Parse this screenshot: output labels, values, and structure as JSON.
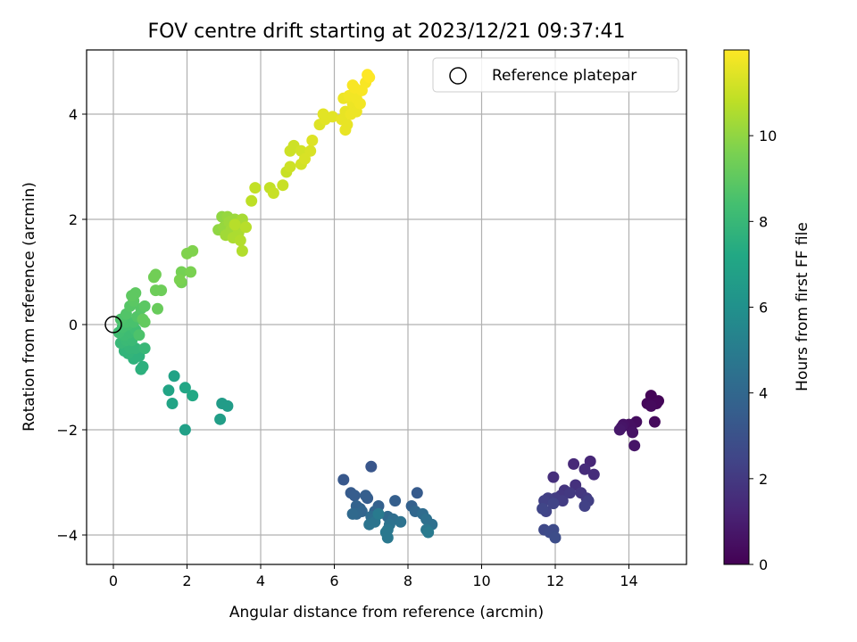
{
  "chart_data": {
    "type": "scatter",
    "title": "FOV centre drift starting at 2023/12/21 09:37:41",
    "xlabel": "Angular distance from reference (arcmin)",
    "ylabel": "Rotation from reference (arcmin)",
    "xlim": [
      -0.7,
      15.5
    ],
    "ylim": [
      -4.55,
      5.2
    ],
    "xticks": [
      0,
      2,
      4,
      6,
      8,
      10,
      12,
      14
    ],
    "yticks": [
      -4,
      -2,
      0,
      2,
      4
    ],
    "grid": true,
    "legend": {
      "placement": "top-right",
      "entries": [
        "Reference platepar"
      ]
    },
    "reference_point": {
      "x": 0,
      "y": 0
    },
    "colorbar": {
      "label": "Hours from first FF file",
      "range": [
        0,
        12
      ],
      "ticks": [
        0,
        2,
        4,
        6,
        8,
        10
      ],
      "colormap": "viridis"
    },
    "series": [
      {
        "points": [
          [
            14.6,
            -1.35,
            0.1
          ],
          [
            14.8,
            -1.45,
            0.1
          ],
          [
            14.5,
            -1.5,
            0.2
          ],
          [
            14.75,
            -1.5,
            0.2
          ],
          [
            14.6,
            -1.55,
            0.3
          ],
          [
            14.7,
            -1.85,
            0.3
          ],
          [
            14.2,
            -1.85,
            0.4
          ],
          [
            14.0,
            -1.9,
            0.5
          ],
          [
            13.85,
            -1.9,
            0.6
          ],
          [
            13.8,
            -1.95,
            0.7
          ],
          [
            13.75,
            -2.0,
            0.8
          ],
          [
            14.05,
            -1.95,
            0.5
          ],
          [
            14.1,
            -2.05,
            0.6
          ],
          [
            14.15,
            -2.3,
            0.7
          ],
          [
            12.95,
            -2.6,
            1.3
          ],
          [
            12.5,
            -2.65,
            1.4
          ],
          [
            12.8,
            -2.75,
            1.5
          ],
          [
            13.05,
            -2.85,
            1.5
          ],
          [
            11.95,
            -2.9,
            1.6
          ],
          [
            12.55,
            -3.05,
            1.7
          ],
          [
            12.25,
            -3.15,
            1.8
          ],
          [
            12.7,
            -3.2,
            1.9
          ],
          [
            12.15,
            -3.25,
            1.9
          ],
          [
            12.85,
            -3.3,
            2.0
          ],
          [
            12.4,
            -3.2,
            2.0
          ],
          [
            12.0,
            -3.3,
            2.1
          ],
          [
            12.2,
            -3.35,
            2.1
          ],
          [
            11.8,
            -3.3,
            2.2
          ],
          [
            11.7,
            -3.35,
            2.3
          ],
          [
            12.9,
            -3.35,
            2.2
          ],
          [
            12.8,
            -3.45,
            2.3
          ],
          [
            11.75,
            -3.55,
            2.4
          ],
          [
            11.65,
            -3.5,
            2.5
          ],
          [
            11.95,
            -3.4,
            2.4
          ],
          [
            11.7,
            -3.9,
            2.6
          ],
          [
            11.95,
            -3.9,
            2.7
          ],
          [
            12.0,
            -4.05,
            2.8
          ],
          [
            11.85,
            -3.95,
            2.7
          ],
          [
            7.0,
            -2.7,
            3.2
          ],
          [
            6.25,
            -2.95,
            3.3
          ],
          [
            6.45,
            -3.2,
            3.4
          ],
          [
            8.25,
            -3.2,
            3.4
          ],
          [
            6.55,
            -3.25,
            3.5
          ],
          [
            6.9,
            -3.3,
            3.5
          ],
          [
            6.85,
            -3.25,
            3.6
          ],
          [
            7.65,
            -3.35,
            3.6
          ],
          [
            8.1,
            -3.45,
            3.7
          ],
          [
            7.2,
            -3.45,
            3.7
          ],
          [
            6.6,
            -3.45,
            3.8
          ],
          [
            6.7,
            -3.5,
            3.8
          ],
          [
            6.75,
            -3.55,
            3.9
          ],
          [
            7.1,
            -3.55,
            3.9
          ],
          [
            8.2,
            -3.55,
            4.0
          ],
          [
            6.6,
            -3.6,
            4.0
          ],
          [
            6.5,
            -3.6,
            4.1
          ],
          [
            7.45,
            -3.65,
            4.1
          ],
          [
            8.4,
            -3.6,
            4.2
          ],
          [
            7.0,
            -3.65,
            4.2
          ],
          [
            7.05,
            -3.7,
            4.3
          ],
          [
            7.6,
            -3.7,
            4.3
          ],
          [
            8.5,
            -3.7,
            4.4
          ],
          [
            8.65,
            -3.8,
            4.4
          ],
          [
            7.8,
            -3.75,
            4.5
          ],
          [
            7.5,
            -3.8,
            4.5
          ],
          [
            6.95,
            -3.8,
            4.6
          ],
          [
            7.1,
            -3.75,
            4.6
          ],
          [
            7.45,
            -3.9,
            4.7
          ],
          [
            8.5,
            -3.9,
            4.7
          ],
          [
            7.4,
            -3.95,
            4.8
          ],
          [
            7.45,
            -4.05,
            4.8
          ],
          [
            8.55,
            -3.95,
            4.9
          ],
          [
            7.2,
            -3.6,
            4.9
          ],
          [
            2.95,
            -1.5,
            6.6
          ],
          [
            3.1,
            -1.55,
            6.6
          ],
          [
            2.9,
            -1.8,
            6.7
          ],
          [
            1.95,
            -2.0,
            6.8
          ],
          [
            1.65,
            -0.98,
            6.9
          ],
          [
            1.5,
            -1.25,
            7.0
          ],
          [
            1.6,
            -1.5,
            7.0
          ],
          [
            1.95,
            -1.2,
            7.1
          ],
          [
            2.15,
            -1.35,
            7.2
          ],
          [
            0.75,
            -0.85,
            7.6
          ],
          [
            0.8,
            -0.8,
            7.6
          ],
          [
            0.55,
            -0.65,
            7.7
          ],
          [
            0.7,
            -0.6,
            7.7
          ],
          [
            0.4,
            -0.55,
            7.8
          ],
          [
            0.3,
            -0.5,
            7.8
          ],
          [
            0.45,
            -0.45,
            7.9
          ],
          [
            0.6,
            -0.45,
            7.9
          ],
          [
            0.85,
            -0.45,
            8.0
          ],
          [
            0.2,
            -0.35,
            8.0
          ],
          [
            0.35,
            -0.3,
            8.1
          ],
          [
            0.5,
            -0.3,
            8.1
          ],
          [
            0.3,
            -0.2,
            8.2
          ],
          [
            0.45,
            -0.15,
            8.2
          ],
          [
            0.15,
            -0.15,
            8.3
          ],
          [
            0.6,
            -0.1,
            8.3
          ],
          [
            0.25,
            -0.05,
            8.4
          ],
          [
            0.4,
            0.0,
            8.4
          ],
          [
            0.35,
            0.05,
            8.5
          ],
          [
            0.55,
            0.05,
            8.5
          ],
          [
            0.7,
            -0.2,
            8.6
          ],
          [
            0.2,
            0.1,
            8.6
          ],
          [
            0.65,
            0.15,
            8.7
          ],
          [
            0.35,
            0.2,
            8.7
          ],
          [
            0.45,
            0.35,
            8.8
          ],
          [
            0.75,
            0.3,
            8.8
          ],
          [
            0.85,
            0.35,
            8.9
          ],
          [
            0.55,
            0.45,
            8.9
          ],
          [
            0.6,
            0.6,
            9.0
          ],
          [
            0.5,
            0.55,
            9.0
          ],
          [
            0.8,
            0.1,
            9.1
          ],
          [
            0.85,
            0.05,
            9.1
          ],
          [
            1.2,
            0.3,
            9.2
          ],
          [
            1.15,
            0.65,
            9.3
          ],
          [
            1.3,
            0.65,
            9.3
          ],
          [
            1.1,
            0.9,
            9.4
          ],
          [
            1.15,
            0.95,
            9.4
          ],
          [
            1.85,
            0.8,
            9.5
          ],
          [
            1.85,
            1.0,
            9.5
          ],
          [
            2.1,
            1.0,
            9.6
          ],
          [
            1.8,
            0.85,
            9.6
          ],
          [
            2.0,
            1.35,
            9.7
          ],
          [
            2.15,
            1.4,
            9.7
          ],
          [
            2.85,
            1.8,
            10.0
          ],
          [
            2.95,
            2.05,
            10.0
          ],
          [
            3.1,
            2.05,
            10.1
          ],
          [
            3.0,
            1.85,
            10.1
          ],
          [
            3.15,
            1.95,
            10.2
          ],
          [
            3.3,
            2.0,
            10.2
          ],
          [
            3.05,
            1.7,
            10.3
          ],
          [
            3.2,
            1.8,
            10.3
          ],
          [
            3.35,
            1.85,
            10.4
          ],
          [
            3.5,
            2.0,
            10.4
          ],
          [
            3.4,
            1.75,
            10.5
          ],
          [
            3.25,
            1.65,
            10.5
          ],
          [
            3.45,
            1.6,
            10.6
          ],
          [
            3.5,
            1.4,
            10.6
          ],
          [
            3.6,
            1.85,
            10.7
          ],
          [
            3.3,
            1.9,
            10.7
          ],
          [
            3.75,
            2.35,
            10.8
          ],
          [
            3.85,
            2.6,
            10.9
          ],
          [
            4.25,
            2.6,
            10.9
          ],
          [
            4.35,
            2.5,
            11.0
          ],
          [
            4.6,
            2.65,
            11.0
          ],
          [
            4.7,
            2.9,
            11.0
          ],
          [
            4.8,
            3.0,
            11.1
          ],
          [
            4.8,
            3.3,
            11.1
          ],
          [
            4.9,
            3.4,
            11.1
          ],
          [
            5.1,
            3.05,
            11.2
          ],
          [
            5.1,
            3.3,
            11.2
          ],
          [
            5.35,
            3.3,
            11.3
          ],
          [
            5.2,
            3.15,
            11.3
          ],
          [
            5.4,
            3.5,
            11.4
          ],
          [
            5.6,
            3.8,
            11.4
          ],
          [
            5.75,
            3.9,
            11.5
          ],
          [
            5.7,
            4.0,
            11.5
          ],
          [
            5.95,
            3.95,
            11.5
          ],
          [
            6.3,
            3.7,
            11.6
          ],
          [
            6.2,
            3.9,
            11.6
          ],
          [
            6.3,
            4.05,
            11.6
          ],
          [
            6.45,
            4.0,
            11.7
          ],
          [
            6.5,
            4.2,
            11.7
          ],
          [
            6.25,
            4.3,
            11.7
          ],
          [
            6.4,
            4.35,
            11.8
          ],
          [
            6.6,
            4.3,
            11.8
          ],
          [
            6.7,
            4.2,
            11.8
          ],
          [
            6.55,
            4.5,
            11.9
          ],
          [
            6.75,
            4.45,
            11.9
          ],
          [
            6.85,
            4.6,
            11.9
          ],
          [
            6.9,
            4.75,
            12.0
          ],
          [
            6.95,
            4.7,
            12.0
          ],
          [
            6.5,
            4.55,
            11.9
          ],
          [
            6.35,
            3.8,
            11.6
          ],
          [
            6.6,
            4.05,
            11.7
          ]
        ]
      }
    ]
  }
}
